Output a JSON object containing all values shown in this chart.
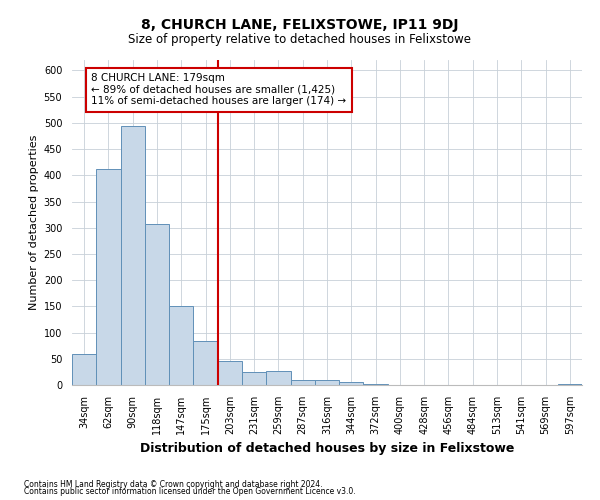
{
  "title": "8, CHURCH LANE, FELIXSTOWE, IP11 9DJ",
  "subtitle": "Size of property relative to detached houses in Felixstowe",
  "xlabel": "Distribution of detached houses by size in Felixstowe",
  "ylabel": "Number of detached properties",
  "bar_labels": [
    "34sqm",
    "62sqm",
    "90sqm",
    "118sqm",
    "147sqm",
    "175sqm",
    "203sqm",
    "231sqm",
    "259sqm",
    "287sqm",
    "316sqm",
    "344sqm",
    "372sqm",
    "400sqm",
    "428sqm",
    "456sqm",
    "484sqm",
    "513sqm",
    "541sqm",
    "569sqm",
    "597sqm"
  ],
  "bar_values": [
    60,
    413,
    495,
    307,
    150,
    83,
    46,
    25,
    26,
    10,
    10,
    5,
    2,
    0,
    0,
    0,
    0,
    0,
    0,
    0,
    2
  ],
  "bar_color": "#c8d8e8",
  "bar_edge_color": "#6090b8",
  "vline_x_index": 5.5,
  "annotation_line1": "8 CHURCH LANE: 179sqm",
  "annotation_line2": "← 89% of detached houses are smaller (1,425)",
  "annotation_line3": "11% of semi-detached houses are larger (174) →",
  "vline_color": "#cc0000",
  "annotation_box_facecolor": "#ffffff",
  "annotation_box_edgecolor": "#cc0000",
  "footer1": "Contains HM Land Registry data © Crown copyright and database right 2024.",
  "footer2": "Contains public sector information licensed under the Open Government Licence v3.0.",
  "ylim": [
    0,
    620
  ],
  "yticks": [
    0,
    50,
    100,
    150,
    200,
    250,
    300,
    350,
    400,
    450,
    500,
    550,
    600
  ],
  "background_color": "#ffffff",
  "grid_color": "#c8d0d8",
  "title_fontsize": 10,
  "subtitle_fontsize": 8.5,
  "ylabel_fontsize": 8,
  "xlabel_fontsize": 9,
  "tick_fontsize": 7,
  "footer_fontsize": 5.5
}
